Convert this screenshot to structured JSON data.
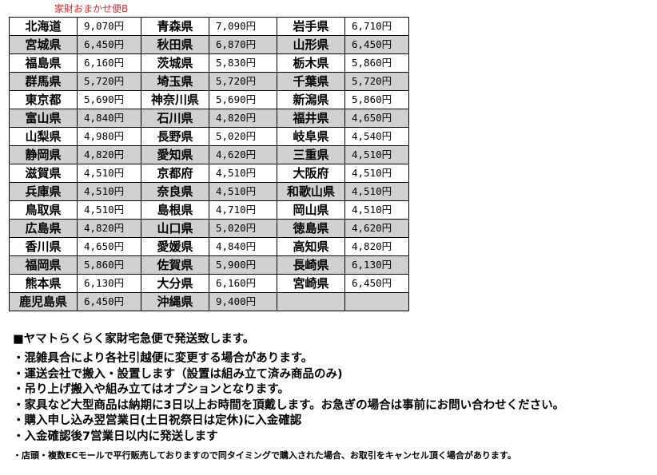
{
  "title": "家財おまかせ便B",
  "rows": [
    [
      [
        "北海道",
        "9,070円"
      ],
      [
        "青森県",
        "7,090円"
      ],
      [
        "岩手県",
        "6,710円"
      ]
    ],
    [
      [
        "宮城県",
        "6,450円"
      ],
      [
        "秋田県",
        "6,870円"
      ],
      [
        "山形県",
        "6,450円"
      ]
    ],
    [
      [
        "福島県",
        "6,160円"
      ],
      [
        "茨城県",
        "5,830円"
      ],
      [
        "栃木県",
        "5,860円"
      ]
    ],
    [
      [
        "群馬県",
        "5,720円"
      ],
      [
        "埼玉県",
        "5,720円"
      ],
      [
        "千葉県",
        "5,720円"
      ]
    ],
    [
      [
        "東京都",
        "5,690円"
      ],
      [
        "神奈川県",
        "5,690円"
      ],
      [
        "新潟県",
        "5,860円"
      ]
    ],
    [
      [
        "富山県",
        "4,840円"
      ],
      [
        "石川県",
        "4,820円"
      ],
      [
        "福井県",
        "4,650円"
      ]
    ],
    [
      [
        "山梨県",
        "4,980円"
      ],
      [
        "長野県",
        "5,020円"
      ],
      [
        "岐阜県",
        "4,540円"
      ]
    ],
    [
      [
        "静岡県",
        "4,820円"
      ],
      [
        "愛知県",
        "4,620円"
      ],
      [
        "三重県",
        "4,510円"
      ]
    ],
    [
      [
        "滋賀県",
        "4,510円"
      ],
      [
        "京都府",
        "4,510円"
      ],
      [
        "大阪府",
        "4,510円"
      ]
    ],
    [
      [
        "兵庫県",
        "4,510円"
      ],
      [
        "奈良県",
        "4,510円"
      ],
      [
        "和歌山県",
        "4,510円"
      ]
    ],
    [
      [
        "鳥取県",
        "4,510円"
      ],
      [
        "島根県",
        "4,710円"
      ],
      [
        "岡山県",
        "4,510円"
      ]
    ],
    [
      [
        "広島県",
        "4,820円"
      ],
      [
        "山口県",
        "5,020円"
      ],
      [
        "徳島県",
        "4,620円"
      ]
    ],
    [
      [
        "香川県",
        "4,650円"
      ],
      [
        "愛媛県",
        "4,840円"
      ],
      [
        "高知県",
        "4,820円"
      ]
    ],
    [
      [
        "福岡県",
        "5,860円"
      ],
      [
        "佐賀県",
        "5,900円"
      ],
      [
        "長崎県",
        "6,130円"
      ]
    ],
    [
      [
        "熊本県",
        "6,130円"
      ],
      [
        "大分県",
        "6,160円"
      ],
      [
        "宮崎県",
        "6,450円"
      ]
    ],
    [
      [
        "鹿児島県",
        "6,450円"
      ],
      [
        "沖縄県",
        "9,400円"
      ],
      [
        "",
        ""
      ]
    ]
  ],
  "shade_color": "#d0d0d0",
  "title_color": "#e03030",
  "notes": {
    "heading": "■ヤマトらくらく家財宅急便で発送致します。",
    "lines": [
      "・混雑具合により各社引越便に変更する場合があります。",
      "・運送会社で搬入・設置します（設置は組み立て済み商品のみ)",
      "・吊り上げ搬入や組み立てはオプションとなります。",
      "・家具など大型商品は納期に3日以上お時間を頂戴します。お急ぎの場合は事前にお問い合わせください。",
      "・購入申し込み翌営業日(土日祝祭日は定休)に入金確認",
      "・入金確認後7営業日以内に発送します"
    ],
    "footnote": "・店頭・複数ECモールで平行販売しておりますので同タイミングで購入された場合、お取引をキャンセル頂く場合があります。"
  }
}
